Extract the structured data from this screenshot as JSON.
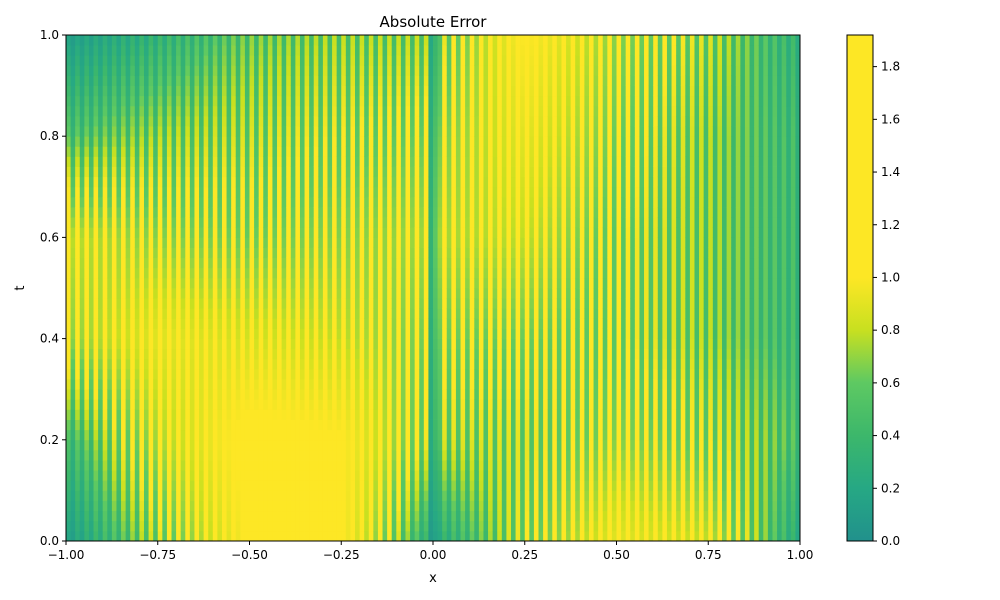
{
  "chart_data": {
    "type": "heatmap",
    "title": "Absolute Error",
    "xlabel": "x",
    "ylabel": "t",
    "xlim": [
      -1.0,
      1.0
    ],
    "ylim": [
      0.0,
      1.0
    ],
    "x_ticks": [
      {
        "value": -1.0,
        "label": "−1.00"
      },
      {
        "value": -0.75,
        "label": "−0.75"
      },
      {
        "value": -0.5,
        "label": "−0.50"
      },
      {
        "value": -0.25,
        "label": "−0.25"
      },
      {
        "value": 0.0,
        "label": "0.00"
      },
      {
        "value": 0.25,
        "label": "0.25"
      },
      {
        "value": 0.5,
        "label": "0.50"
      },
      {
        "value": 0.75,
        "label": "0.75"
      },
      {
        "value": 1.0,
        "label": "1.00"
      }
    ],
    "y_ticks": [
      {
        "value": 0.0,
        "label": "0.0"
      },
      {
        "value": 0.2,
        "label": "0.2"
      },
      {
        "value": 0.4,
        "label": "0.4"
      },
      {
        "value": 0.6,
        "label": "0.6"
      },
      {
        "value": 0.8,
        "label": "0.8"
      },
      {
        "value": 1.0,
        "label": "1.0"
      }
    ],
    "colorbar": {
      "range": [
        0.0,
        1.92
      ],
      "ticks": [
        {
          "value": 0.0,
          "label": "0.0"
        },
        {
          "value": 0.2,
          "label": "0.2"
        },
        {
          "value": 0.4,
          "label": "0.4"
        },
        {
          "value": 0.6,
          "label": "0.6"
        },
        {
          "value": 0.8,
          "label": "0.8"
        },
        {
          "value": 1.0,
          "label": "1.0"
        },
        {
          "value": 1.2,
          "label": "1.2"
        },
        {
          "value": 1.4,
          "label": "1.4"
        },
        {
          "value": 1.6,
          "label": "1.6"
        },
        {
          "value": 1.8,
          "label": "1.8"
        }
      ],
      "colormap": [
        {
          "value": 0.0,
          "color": "#21918c"
        },
        {
          "value": 0.2,
          "color": "#26a884"
        },
        {
          "value": 0.4,
          "color": "#3cb76b"
        },
        {
          "value": 0.6,
          "color": "#5ec962"
        },
        {
          "value": 0.8,
          "color": "#c8e020"
        },
        {
          "value": 1.0,
          "color": "#fde725"
        },
        {
          "value": 1.92,
          "color": "#fde725"
        }
      ]
    },
    "grid": false,
    "pattern": "oscillatory stripes along x, discontinuity at x = 0",
    "envelope_samples": {
      "x": [
        -1.0,
        -0.75,
        -0.5,
        -0.25,
        0.0,
        0.25,
        0.5,
        0.75,
        1.0
      ],
      "t": [
        0.0,
        0.2,
        0.4,
        0.6,
        0.8,
        1.0
      ],
      "values": [
        [
          0.15,
          0.9,
          1.8,
          1.8,
          0.3,
          1.0,
          1.6,
          1.4,
          0.3
        ],
        [
          0.5,
          1.3,
          1.9,
          1.8,
          0.9,
          0.9,
          1.2,
          1.0,
          0.6
        ],
        [
          1.2,
          1.6,
          1.5,
          1.4,
          1.1,
          1.1,
          1.0,
          0.8,
          0.5
        ],
        [
          1.4,
          1.2,
          1.1,
          1.2,
          1.3,
          1.4,
          1.0,
          0.8,
          0.5
        ],
        [
          0.6,
          0.8,
          0.9,
          1.0,
          1.1,
          1.6,
          1.1,
          0.8,
          0.5
        ],
        [
          0.15,
          0.4,
          0.7,
          0.8,
          0.8,
          1.8,
          1.2,
          0.9,
          0.4
        ]
      ]
    }
  }
}
